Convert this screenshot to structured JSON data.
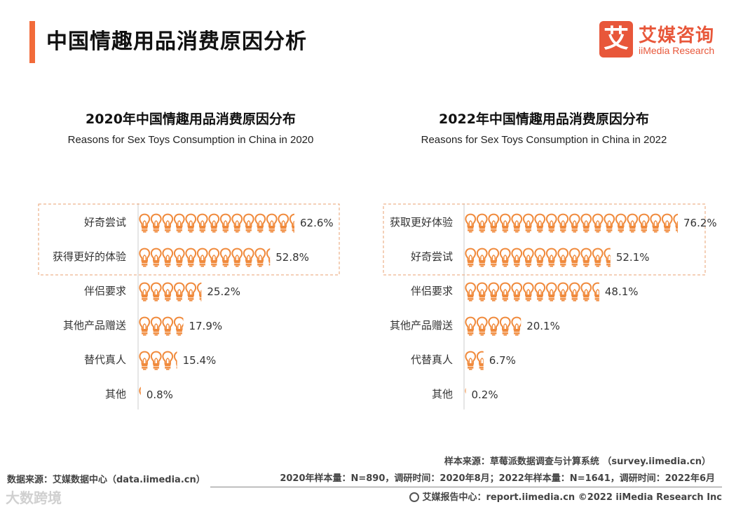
{
  "header": {
    "title": "中国情趣用品消费原因分析",
    "logo_mark": "艾",
    "logo_cn": "艾媒咨询",
    "logo_en": "iiMedia Research"
  },
  "chart_data": [
    {
      "type": "bar",
      "title": "2020年中国情趣用品消费原因分布",
      "subtitle": "Reasons for Sex Toys Consumption in China in 2020",
      "categories": [
        "好奇尝试",
        "获得更好的体验",
        "伴侣要求",
        "其他产品赠送",
        "替代真人",
        "其他"
      ],
      "values": [
        62.6,
        52.8,
        25.2,
        17.9,
        15.4,
        0.8
      ],
      "value_labels": [
        "62.6%",
        "52.8%",
        "25.2%",
        "17.9%",
        "15.4%",
        "0.8%"
      ],
      "highlighted_count": 2,
      "unit": "%",
      "mark": "lightbulb-icon",
      "color": "#f08a3c"
    },
    {
      "type": "bar",
      "title": "2022年中国情趣用品消费原因分布",
      "subtitle": "Reasons for Sex Toys Consumption in China in 2022",
      "categories": [
        "获取更好体验",
        "好奇尝试",
        "伴侣要求",
        "其他产品赠送",
        "代替真人",
        "其他"
      ],
      "values": [
        76.2,
        52.1,
        48.1,
        20.1,
        6.7,
        0.2
      ],
      "value_labels": [
        "76.2%",
        "52.1%",
        "48.1%",
        "20.1%",
        "6.7%",
        "0.2%"
      ],
      "highlighted_count": 2,
      "unit": "%",
      "mark": "lightbulb-icon",
      "color": "#f08a3c"
    }
  ],
  "footer": {
    "sample_source": "样本来源：草莓派数据调查与计算系统 （survey.iimedia.cn）",
    "data_source": "数据来源：艾媒数据中心（data.iimedia.cn）",
    "sample_info": "2020年样本量：N=890，调研时间：2020年8月；2022年样本量：N=1641，调研时间：2022年6月",
    "report_center": "艾媒报告中心：report.iimedia.cn  ©2022  iiMedia Research  Inc",
    "watermark": "大数跨境"
  }
}
